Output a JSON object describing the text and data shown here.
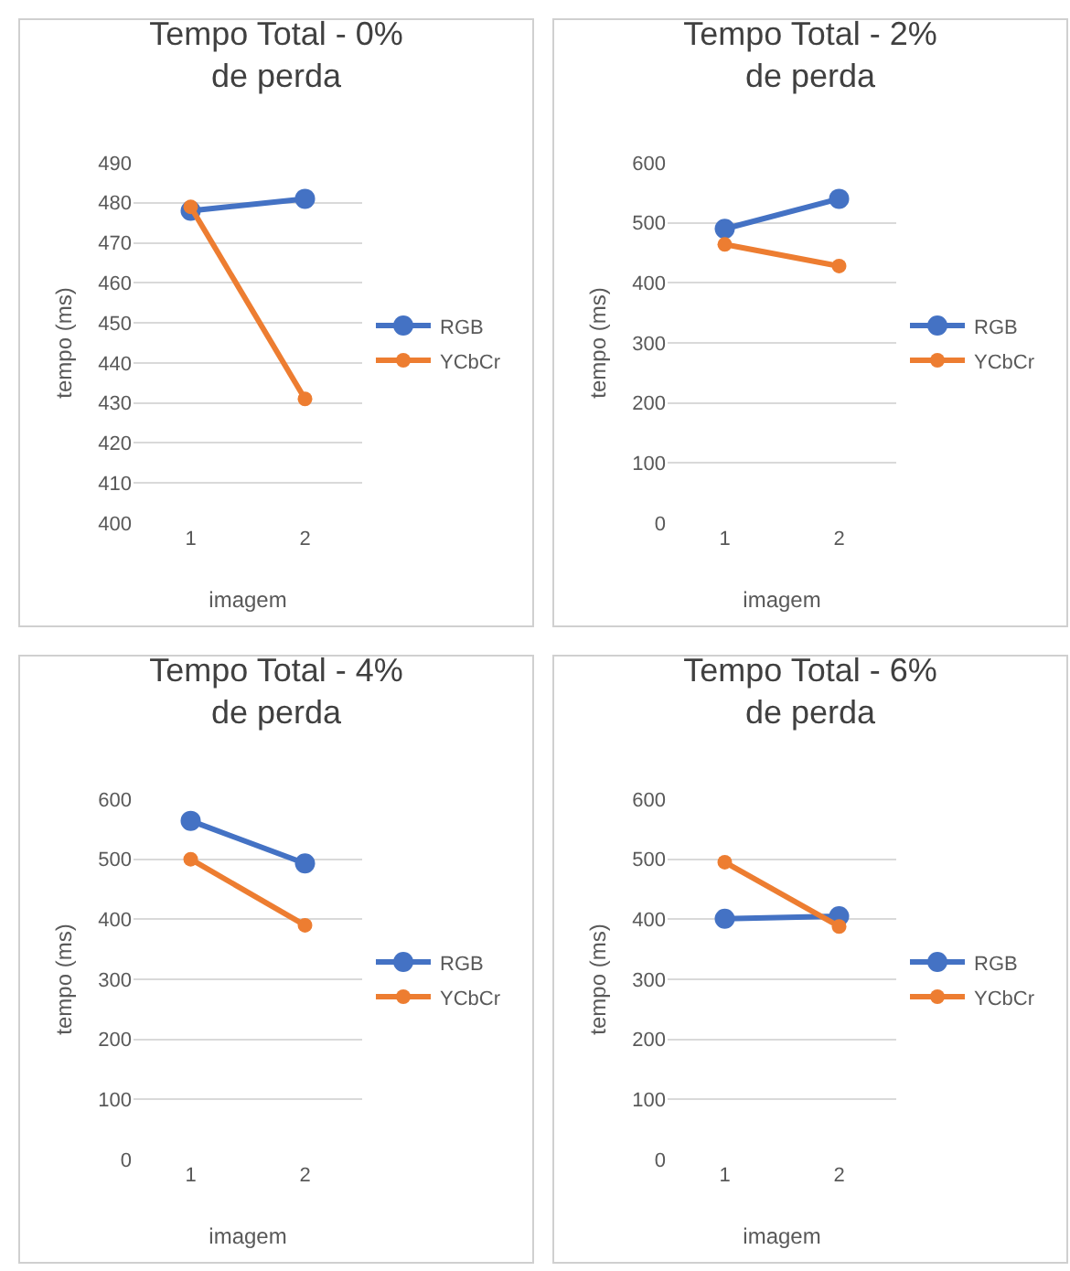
{
  "chart_data": [
    {
      "type": "line",
      "title": "Tempo Total - 0% de perda",
      "xlabel": "imagem",
      "ylabel": "tempo (ms)",
      "categories": [
        "1",
        "2"
      ],
      "series": [
        {
          "name": "RGB",
          "color": "#4472c4",
          "values": [
            478,
            481
          ]
        },
        {
          "name": "YCbCr",
          "color": "#ed7d31",
          "values": [
            479,
            431
          ]
        }
      ],
      "ylim": [
        400,
        490
      ],
      "yticks": [
        400,
        410,
        420,
        430,
        440,
        450,
        460,
        470,
        480,
        490
      ],
      "grid": "y",
      "legend": "right",
      "marker": "circle",
      "line_style": "solid"
    },
    {
      "type": "line",
      "title": "Tempo Total - 2% de perda",
      "xlabel": "imagem",
      "ylabel": "tempo (ms)",
      "categories": [
        "1",
        "2"
      ],
      "series": [
        {
          "name": "RGB",
          "color": "#4472c4",
          "values": [
            490,
            540
          ]
        },
        {
          "name": "YCbCr",
          "color": "#ed7d31",
          "values": [
            464,
            428
          ]
        }
      ],
      "ylim": [
        0,
        600
      ],
      "yticks": [
        0,
        100,
        200,
        300,
        400,
        500,
        600
      ],
      "grid": "y",
      "legend": "right",
      "marker": "circle",
      "line_style": "solid"
    },
    {
      "type": "line",
      "title": "Tempo Total - 4% de perda",
      "xlabel": "imagem",
      "ylabel": "tempo (ms)",
      "categories": [
        "1",
        "2"
      ],
      "series": [
        {
          "name": "RGB",
          "color": "#4472c4",
          "values": [
            564,
            493
          ]
        },
        {
          "name": "YCbCr",
          "color": "#ed7d31",
          "values": [
            500,
            390
          ]
        }
      ],
      "ylim": [
        0,
        600
      ],
      "yticks": [
        0,
        100,
        200,
        300,
        400,
        500,
        600
      ],
      "grid": "y",
      "legend": "right",
      "marker": "circle",
      "line_style": "solid"
    },
    {
      "type": "line",
      "title": "Tempo Total - 6% de perda",
      "xlabel": "imagem",
      "ylabel": "tempo (ms)",
      "categories": [
        "1",
        "2"
      ],
      "series": [
        {
          "name": "RGB",
          "color": "#4472c4",
          "values": [
            401,
            405
          ]
        },
        {
          "name": "YCbCr",
          "color": "#ed7d31",
          "values": [
            495,
            388
          ]
        }
      ],
      "ylim": [
        0,
        600
      ],
      "yticks": [
        0,
        100,
        200,
        300,
        400,
        500,
        600
      ],
      "grid": "y",
      "legend": "right",
      "marker": "circle",
      "line_style": "solid"
    }
  ]
}
